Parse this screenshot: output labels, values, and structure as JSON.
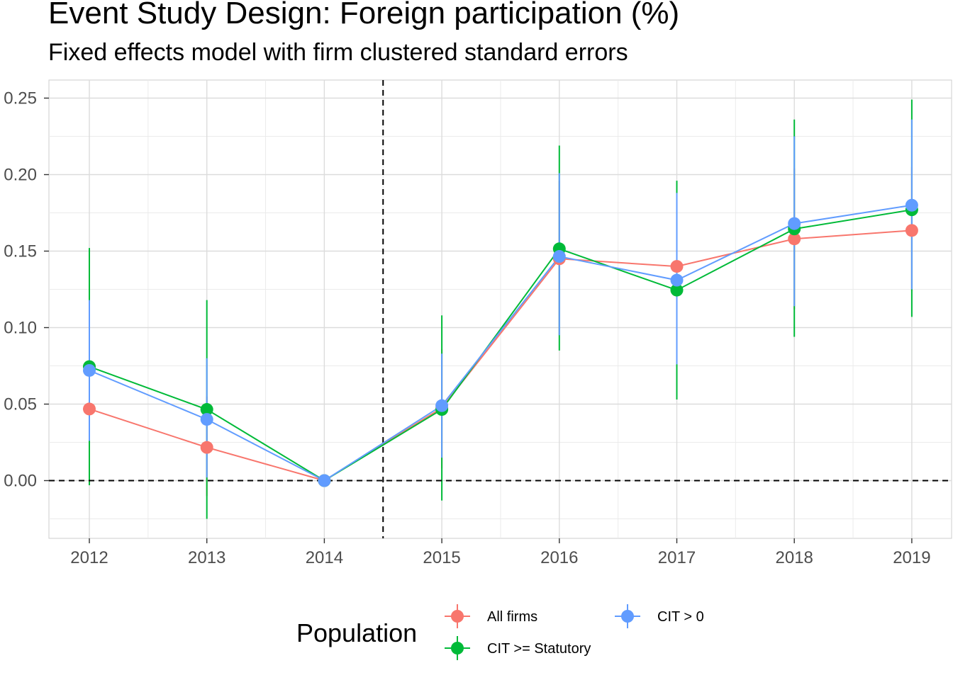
{
  "chart_data": {
    "type": "line",
    "title": "Event Study Design: Foreign participation (%)",
    "subtitle": "Fixed effects model with firm clustered standard errors",
    "xlabel": "",
    "ylabel": "",
    "x": [
      "2012",
      "2013",
      "2014",
      "2015",
      "2016",
      "2017",
      "2018",
      "2019"
    ],
    "ylim": [
      -0.038,
      0.262
    ],
    "y_ticks": [
      "0.00",
      "0.05",
      "0.10",
      "0.15",
      "0.20",
      "0.25"
    ],
    "y_tick_values": [
      0,
      0.05,
      0.1,
      0.15,
      0.2,
      0.25
    ],
    "grid": true,
    "legend_title": "Population",
    "legend_position": "bottom",
    "reference_lines": {
      "horizontal_y": 0,
      "vertical_between": [
        "2014",
        "2015"
      ],
      "style": "dashed"
    },
    "series": [
      {
        "name": "All firms",
        "color": "#F8766D",
        "values": [
          0.0468,
          0.0217,
          0.0,
          0.0475,
          0.145,
          0.14,
          0.158,
          0.1635
        ],
        "lower": [
          0.0,
          -0.01,
          0.0,
          0.008,
          0.095,
          0.096,
          0.112,
          0.124
        ],
        "upper": [
          0.092,
          0.055,
          0.0,
          0.086,
          0.196,
          0.186,
          0.204,
          0.205
        ]
      },
      {
        "name": "CIT >= Statutory",
        "color": "#00BA38",
        "values": [
          0.0745,
          0.0465,
          0.0,
          0.0465,
          0.1515,
          0.1245,
          0.1645,
          0.177
        ],
        "lower": [
          -0.003,
          -0.025,
          0.0,
          -0.013,
          0.085,
          0.053,
          0.094,
          0.107
        ],
        "upper": [
          0.152,
          0.118,
          0.0,
          0.108,
          0.219,
          0.196,
          0.236,
          0.249
        ]
      },
      {
        "name": "CIT > 0",
        "color": "#619CFF",
        "values": [
          0.072,
          0.04,
          0.0,
          0.049,
          0.1465,
          0.131,
          0.168,
          0.18
        ],
        "lower": [
          0.026,
          0.002,
          0.0,
          0.015,
          0.095,
          0.076,
          0.114,
          0.125
        ],
        "upper": [
          0.118,
          0.08,
          0.0,
          0.083,
          0.201,
          0.188,
          0.225,
          0.236
        ]
      }
    ]
  }
}
